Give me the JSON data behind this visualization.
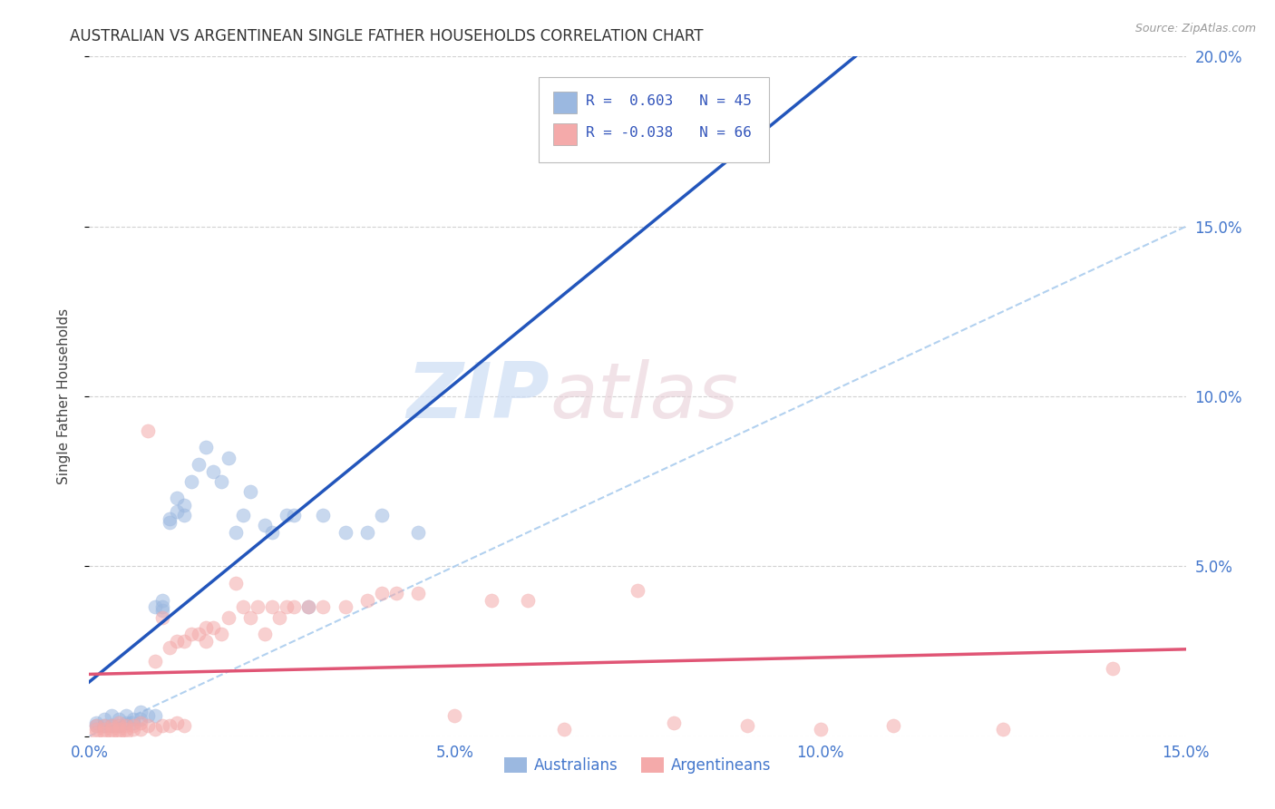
{
  "title": "AUSTRALIAN VS ARGENTINEAN SINGLE FATHER HOUSEHOLDS CORRELATION CHART",
  "source": "Source: ZipAtlas.com",
  "ylabel": "Single Father Households",
  "xlim": [
    0,
    0.15
  ],
  "ylim": [
    0,
    0.2
  ],
  "xticks": [
    0.0,
    0.05,
    0.1,
    0.15
  ],
  "xtick_labels": [
    "0.0%",
    "5.0%",
    "10.0%",
    "15.0%"
  ],
  "yticks": [
    0.0,
    0.05,
    0.1,
    0.15,
    0.2
  ],
  "ytick_labels": [
    "",
    "5.0%",
    "10.0%",
    "15.0%",
    "20.0%"
  ],
  "legend_label1": "Australians",
  "legend_label2": "Argentineans",
  "color_blue": "#9BB8E0",
  "color_pink": "#F4AAAA",
  "color_blue_line": "#2255BB",
  "color_pink_line": "#E05575",
  "color_diag": "#AACCEE",
  "watermark_zip": "ZIP",
  "watermark_atlas": "atlas",
  "aus_x": [
    0.001,
    0.001,
    0.002,
    0.002,
    0.003,
    0.003,
    0.004,
    0.004,
    0.005,
    0.005,
    0.006,
    0.006,
    0.007,
    0.007,
    0.008,
    0.009,
    0.009,
    0.01,
    0.01,
    0.01,
    0.011,
    0.011,
    0.012,
    0.012,
    0.013,
    0.013,
    0.014,
    0.015,
    0.016,
    0.017,
    0.018,
    0.019,
    0.02,
    0.021,
    0.022,
    0.024,
    0.025,
    0.027,
    0.028,
    0.03,
    0.032,
    0.035,
    0.038,
    0.04,
    0.045
  ],
  "aus_y": [
    0.004,
    0.003,
    0.003,
    0.005,
    0.003,
    0.006,
    0.003,
    0.005,
    0.004,
    0.006,
    0.004,
    0.005,
    0.005,
    0.007,
    0.006,
    0.006,
    0.038,
    0.037,
    0.038,
    0.04,
    0.063,
    0.064,
    0.066,
    0.07,
    0.068,
    0.065,
    0.075,
    0.08,
    0.085,
    0.078,
    0.075,
    0.082,
    0.06,
    0.065,
    0.072,
    0.062,
    0.06,
    0.065,
    0.065,
    0.038,
    0.065,
    0.06,
    0.06,
    0.065,
    0.06
  ],
  "arg_x": [
    0.001,
    0.001,
    0.001,
    0.002,
    0.002,
    0.002,
    0.003,
    0.003,
    0.003,
    0.004,
    0.004,
    0.004,
    0.004,
    0.005,
    0.005,
    0.005,
    0.006,
    0.006,
    0.007,
    0.007,
    0.008,
    0.008,
    0.009,
    0.009,
    0.01,
    0.01,
    0.011,
    0.011,
    0.012,
    0.012,
    0.013,
    0.013,
    0.014,
    0.015,
    0.016,
    0.016,
    0.017,
    0.018,
    0.019,
    0.02,
    0.021,
    0.022,
    0.023,
    0.024,
    0.025,
    0.026,
    0.027,
    0.028,
    0.03,
    0.032,
    0.035,
    0.038,
    0.04,
    0.042,
    0.045,
    0.05,
    0.055,
    0.06,
    0.065,
    0.075,
    0.08,
    0.09,
    0.1,
    0.11,
    0.125,
    0.14
  ],
  "arg_y": [
    0.003,
    0.002,
    0.001,
    0.003,
    0.002,
    0.001,
    0.003,
    0.002,
    0.001,
    0.003,
    0.002,
    0.004,
    0.001,
    0.003,
    0.002,
    0.001,
    0.003,
    0.002,
    0.004,
    0.002,
    0.003,
    0.09,
    0.002,
    0.022,
    0.003,
    0.035,
    0.003,
    0.026,
    0.004,
    0.028,
    0.003,
    0.028,
    0.03,
    0.03,
    0.032,
    0.028,
    0.032,
    0.03,
    0.035,
    0.045,
    0.038,
    0.035,
    0.038,
    0.03,
    0.038,
    0.035,
    0.038,
    0.038,
    0.038,
    0.038,
    0.038,
    0.04,
    0.042,
    0.042,
    0.042,
    0.006,
    0.04,
    0.04,
    0.002,
    0.043,
    0.004,
    0.003,
    0.002,
    0.003,
    0.002,
    0.02
  ]
}
